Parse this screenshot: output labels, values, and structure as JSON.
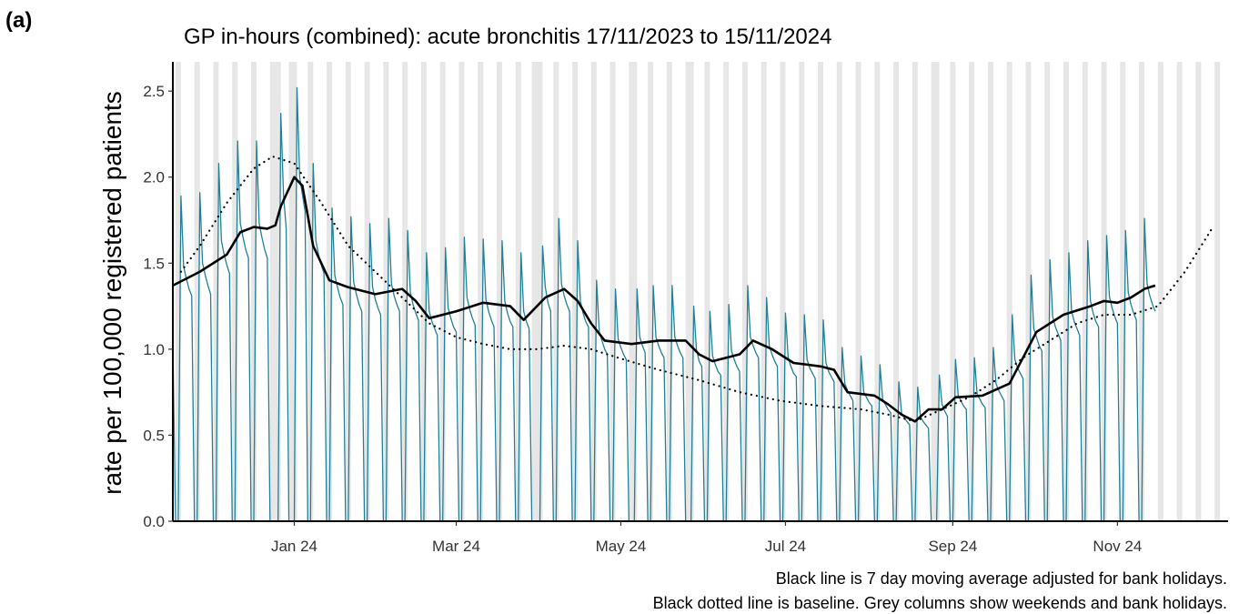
{
  "chart_data": {
    "type": "line",
    "panel_label": "(a)",
    "title": "GP in-hours (combined): acute bronchitis 17/11/2023 to 15/11/2024",
    "ylabel": "rate per 100,000 registered patients",
    "notes": [
      "Black line is 7 day moving average adjusted for bank holidays.",
      "Black dotted line is baseline. Grey columns show weekends and bank holidays."
    ],
    "xlim": [
      0,
      391
    ],
    "xticks": [
      {
        "value": 45,
        "label": "Jan 24"
      },
      {
        "value": 105,
        "label": "Mar 24"
      },
      {
        "value": 166,
        "label": "May 24"
      },
      {
        "value": 227,
        "label": "Jul 24"
      },
      {
        "value": 289,
        "label": "Sep 24"
      },
      {
        "value": 350,
        "label": "Nov 24"
      }
    ],
    "ylim": [
      0,
      2.67
    ],
    "yticks": [
      {
        "value": 0,
        "label": "0.0"
      },
      0.5,
      {
        "value": 1,
        "label": "1.0"
      },
      1.5,
      {
        "value": 2,
        "label": "2.0"
      },
      2.5
    ],
    "grid": false,
    "shade_color": "#e6e6e6",
    "shaded_days": [
      1,
      2,
      8,
      9,
      15,
      16,
      22,
      23,
      29,
      30,
      36,
      37,
      38,
      39,
      43,
      44,
      45,
      50,
      51,
      57,
      58,
      64,
      65,
      71,
      72,
      78,
      79,
      85,
      86,
      92,
      93,
      99,
      100,
      106,
      107,
      113,
      114,
      120,
      121,
      127,
      128,
      133,
      134,
      135,
      136,
      141,
      142,
      148,
      149,
      155,
      156,
      162,
      163,
      169,
      170,
      171,
      176,
      177,
      183,
      184,
      190,
      191,
      192,
      197,
      198,
      204,
      205,
      211,
      212,
      218,
      219,
      225,
      226,
      232,
      233,
      239,
      240,
      246,
      247,
      253,
      254,
      260,
      261,
      267,
      268,
      274,
      275,
      281,
      282,
      283,
      288,
      289,
      295,
      296,
      302,
      303,
      309,
      310,
      316,
      317,
      323,
      324,
      330,
      331,
      337,
      338,
      344,
      345,
      351,
      352,
      358,
      359,
      365,
      366,
      372,
      373,
      379,
      380,
      386,
      387
    ],
    "series": [
      {
        "color": "#1f8098",
        "line_style": "solid",
        "line_width": 1.3,
        "x": [
          0,
          1,
          2,
          3,
          4,
          5,
          6,
          7,
          8,
          9,
          10,
          11,
          12,
          13,
          14,
          15,
          16,
          17,
          18,
          19,
          20,
          21,
          22,
          23,
          24,
          25,
          26,
          27,
          28,
          29,
          30,
          31,
          32,
          33,
          34,
          35,
          36,
          37,
          38,
          39,
          40,
          41,
          42,
          43,
          44,
          45,
          46,
          47,
          48,
          49,
          50,
          51,
          52,
          53,
          54,
          55,
          56,
          57,
          58,
          59,
          60,
          61,
          62,
          63,
          64,
          65,
          66,
          67,
          68,
          69,
          70,
          71,
          72,
          73,
          74,
          75,
          76,
          77,
          78,
          79,
          80,
          81,
          82,
          83,
          84,
          85,
          86,
          87,
          88,
          89,
          90,
          91,
          92,
          93,
          94,
          95,
          96,
          97,
          98,
          99,
          100,
          101,
          102,
          103,
          104,
          105,
          106,
          107,
          108,
          109,
          110,
          111,
          112,
          113,
          114,
          115,
          116,
          117,
          118,
          119,
          120,
          121,
          122,
          123,
          124,
          125,
          126,
          127,
          128,
          129,
          130,
          131,
          132,
          133,
          134,
          135,
          136,
          137,
          138,
          139,
          140,
          141,
          142,
          143,
          144,
          145,
          146,
          147,
          148,
          149,
          150,
          151,
          152,
          153,
          154,
          155,
          156,
          157,
          158,
          159,
          160,
          161,
          162,
          163,
          164,
          165,
          166,
          167,
          168,
          169,
          170,
          171,
          172,
          173,
          174,
          175,
          176,
          177,
          178,
          179,
          180,
          181,
          182,
          183,
          184,
          185,
          186,
          187,
          188,
          189,
          190,
          191,
          192,
          193,
          194,
          195,
          196,
          197,
          198,
          199,
          200,
          201,
          202,
          203,
          204,
          205,
          206,
          207,
          208,
          209,
          210,
          211,
          212,
          213,
          214,
          215,
          216,
          217,
          218,
          219,
          220,
          221,
          222,
          223,
          224,
          225,
          226,
          227,
          228,
          229,
          230,
          231,
          232,
          233,
          234,
          235,
          236,
          237,
          238,
          239,
          240,
          241,
          242,
          243,
          244,
          245,
          246,
          247,
          248,
          249,
          250,
          251,
          252,
          253,
          254,
          255,
          256,
          257,
          258,
          259,
          260,
          261,
          262,
          263,
          264,
          265,
          266,
          267,
          268,
          269,
          270,
          271,
          272,
          273,
          274,
          275,
          276,
          277,
          278,
          279,
          280,
          281,
          282,
          283,
          284,
          285,
          286,
          287,
          288,
          289,
          290,
          291,
          292,
          293,
          294,
          295,
          296,
          297,
          298,
          299,
          300,
          301,
          302,
          303,
          304,
          305,
          306,
          307,
          308,
          309,
          310,
          311,
          312,
          313,
          314,
          315,
          316,
          317,
          318,
          319,
          320,
          321,
          322,
          323,
          324,
          325,
          326,
          327,
          328,
          329,
          330,
          331,
          332,
          333,
          334,
          335,
          336,
          337,
          338,
          339,
          340,
          341,
          342,
          343,
          344,
          345,
          346,
          347,
          348,
          349,
          350,
          351,
          352,
          353,
          354,
          355,
          356,
          357,
          358,
          359,
          360,
          361,
          362,
          363,
          364
        ],
        "values": [
          1.05,
          0,
          0,
          1.89,
          1.48,
          1.41,
          1.35,
          1.31,
          0,
          0,
          1.91,
          1.5,
          1.43,
          1.37,
          1.32,
          0,
          0,
          2.08,
          1.63,
          1.55,
          1.49,
          1.44,
          0,
          0,
          2.21,
          1.73,
          1.65,
          1.58,
          1.53,
          0,
          0,
          2.21,
          1.73,
          1.65,
          1.58,
          1.53,
          0,
          0,
          0,
          0,
          2.37,
          1.9,
          1.7,
          0,
          0,
          0,
          2.52,
          2.0,
          1.9,
          1.8,
          0,
          0,
          2.08,
          1.63,
          1.55,
          1.49,
          1.44,
          0,
          0,
          1.82,
          1.43,
          1.36,
          1.3,
          1.26,
          0,
          0,
          1.77,
          1.39,
          1.32,
          1.26,
          1.22,
          0,
          0,
          1.73,
          1.36,
          1.29,
          1.24,
          1.2,
          0,
          0,
          1.76,
          1.38,
          1.31,
          1.26,
          1.22,
          0,
          0,
          1.69,
          1.33,
          1.26,
          1.21,
          1.17,
          0,
          0,
          1.56,
          1.22,
          1.16,
          1.12,
          1.08,
          0,
          0,
          1.59,
          1.24,
          1.18,
          1.13,
          1.1,
          0,
          0,
          1.65,
          1.3,
          1.23,
          1.18,
          1.14,
          0,
          0,
          1.64,
          1.29,
          1.22,
          1.17,
          1.13,
          0,
          0,
          1.63,
          1.28,
          1.21,
          1.16,
          1.13,
          0,
          0,
          1.56,
          1.22,
          1.16,
          1.12,
          0,
          0,
          0,
          0,
          1.6,
          1.36,
          1.27,
          1.22,
          0,
          0,
          1.76,
          1.38,
          1.31,
          1.26,
          1.22,
          0,
          0,
          1.63,
          1.28,
          1.21,
          1.16,
          1.13,
          0,
          0,
          1.4,
          1.1,
          1.05,
          1.0,
          0.97,
          0,
          0,
          1.35,
          1.06,
          1.01,
          0.97,
          0.94,
          0,
          0,
          0,
          1.35,
          1.07,
          1.02,
          0.98,
          0,
          0,
          1.37,
          1.07,
          1.02,
          0.98,
          0.95,
          0,
          0,
          1.37,
          1.07,
          1.02,
          0.98,
          0.95,
          0,
          0,
          0,
          1.25,
          1.0,
          0.93,
          0.9,
          0,
          0,
          1.22,
          0.96,
          0.91,
          0.87,
          0.85,
          0,
          0,
          1.26,
          0.99,
          0.94,
          0.9,
          0.87,
          0,
          0,
          1.37,
          1.07,
          1.02,
          0.98,
          0.95,
          0,
          0,
          1.3,
          1.02,
          0.97,
          0.93,
          0.9,
          0,
          0,
          1.21,
          0.95,
          0.9,
          0.86,
          0.84,
          0,
          0,
          1.2,
          0.94,
          0.89,
          0.86,
          0.83,
          0,
          0,
          1.17,
          0.92,
          0.87,
          0.84,
          0.81,
          0,
          0,
          1.01,
          0.8,
          0.76,
          0.73,
          0.7,
          0,
          0,
          0.96,
          0.75,
          0.72,
          0.69,
          0.67,
          0,
          0,
          0.91,
          0.71,
          0.68,
          0.65,
          0.63,
          0,
          0,
          0.81,
          0.63,
          0.6,
          0.58,
          0.56,
          0,
          0,
          0.78,
          0.61,
          0.58,
          0.56,
          0.54,
          0,
          0,
          0,
          0.85,
          0.68,
          0.64,
          0.61,
          0,
          0,
          0.94,
          0.73,
          0.7,
          0.67,
          0.65,
          0,
          0,
          0.95,
          0.74,
          0.71,
          0.68,
          0.66,
          0,
          0,
          1.01,
          0.8,
          0.76,
          0.73,
          0.7,
          0,
          0,
          1.2,
          0.94,
          0.89,
          0.86,
          0.83,
          0,
          0,
          1.43,
          1.12,
          1.07,
          1.02,
          0.99,
          0,
          0,
          1.52,
          1.19,
          1.13,
          1.09,
          1.05,
          0,
          0,
          1.56,
          1.22,
          1.16,
          1.12,
          1.08,
          0,
          0,
          1.63,
          1.28,
          1.21,
          1.16,
          1.13,
          0,
          0,
          1.66,
          1.31,
          1.24,
          1.19,
          1.15,
          0,
          0,
          1.69,
          1.33,
          1.26,
          1.21,
          1.17,
          0,
          0,
          1.76,
          1.38,
          1.31,
          1.26,
          1.22
        ]
      },
      {
        "color": "#000000",
        "line_style": "solid",
        "line_width": 2.6,
        "x": [
          0,
          10,
          20,
          25,
          30,
          35,
          38,
          40,
          45,
          48,
          52,
          58,
          65,
          75,
          85,
          90,
          95,
          105,
          115,
          125,
          130,
          138,
          145,
          150,
          155,
          160,
          170,
          180,
          190,
          195,
          200,
          210,
          215,
          222,
          230,
          240,
          245,
          250,
          260,
          265,
          270,
          275,
          280,
          285,
          290,
          300,
          310,
          315,
          320,
          325,
          330,
          340,
          345,
          350,
          355,
          360,
          364
        ],
        "values": [
          1.37,
          1.45,
          1.55,
          1.68,
          1.71,
          1.7,
          1.72,
          1.83,
          2.0,
          1.95,
          1.6,
          1.4,
          1.36,
          1.32,
          1.35,
          1.28,
          1.18,
          1.22,
          1.27,
          1.25,
          1.17,
          1.3,
          1.35,
          1.28,
          1.15,
          1.05,
          1.03,
          1.05,
          1.05,
          0.97,
          0.93,
          0.97,
          1.05,
          1.0,
          0.92,
          0.9,
          0.88,
          0.75,
          0.73,
          0.68,
          0.62,
          0.58,
          0.65,
          0.65,
          0.72,
          0.73,
          0.8,
          0.95,
          1.1,
          1.15,
          1.2,
          1.25,
          1.28,
          1.27,
          1.3,
          1.35,
          1.37
        ]
      },
      {
        "color": "#000000",
        "line_style": "dotted",
        "line_width": 2.2,
        "x": [
          3,
          10,
          20,
          30,
          37,
          45,
          55,
          65,
          75,
          85,
          95,
          105,
          115,
          125,
          135,
          145,
          155,
          165,
          180,
          195,
          210,
          225,
          240,
          255,
          265,
          275,
          285,
          295,
          305,
          315,
          325,
          335,
          345,
          355,
          365,
          375,
          385
        ],
        "values": [
          1.45,
          1.6,
          1.85,
          2.05,
          2.12,
          2.08,
          1.85,
          1.6,
          1.45,
          1.3,
          1.15,
          1.07,
          1.03,
          1.0,
          1.0,
          1.02,
          1.0,
          0.95,
          0.88,
          0.82,
          0.75,
          0.7,
          0.67,
          0.65,
          0.62,
          0.58,
          0.65,
          0.72,
          0.82,
          0.95,
          1.05,
          1.15,
          1.2,
          1.2,
          1.25,
          1.45,
          1.7
        ]
      }
    ]
  }
}
